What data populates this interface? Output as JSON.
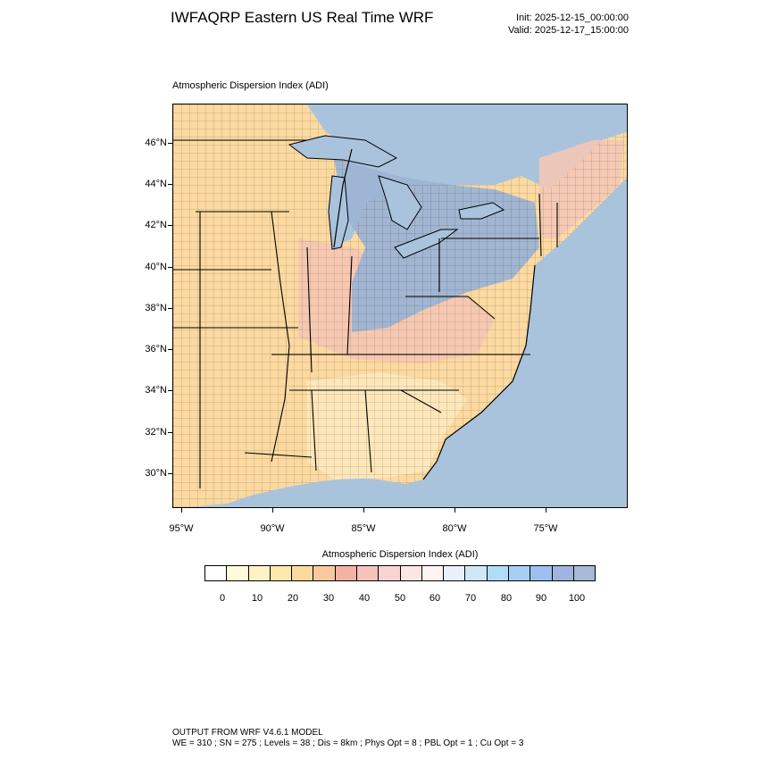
{
  "header": {
    "title": "IWFAQRP Eastern US Real Time WRF",
    "init_time": "Init: 2025-12-15_00:00:00",
    "valid_time": "Valid: 2025-12-17_15:00:00"
  },
  "map": {
    "subtitle": "Atmospheric Dispersion Index   (ADI)",
    "lat_labels": [
      "46°N",
      "44°N",
      "42°N",
      "40°N",
      "38°N",
      "36°N",
      "34°N",
      "32°N",
      "30°N"
    ],
    "lon_labels": [
      "95°W",
      "90°W",
      "85°W",
      "80°W",
      "75°W"
    ],
    "colors": {
      "water": "#a9c3dd",
      "high_adi": "#9db4d4",
      "mid_adi": "#f5d2c4",
      "low_adi": "#fbd9a0",
      "boundary": "#000000"
    }
  },
  "colorbar": {
    "title": "Atmospheric Dispersion Index  (ADI)",
    "colors": [
      "#ffffff",
      "#fffbd8",
      "#fff2c4",
      "#fee7aa",
      "#fbd9a0",
      "#f8c99c",
      "#f4b2a4",
      "#f6c2bc",
      "#f9d5d2",
      "#fbe6e4",
      "#fdf3f3",
      "#e9f0fb",
      "#cfe6f7",
      "#b0dcf7",
      "#a7cff4",
      "#9dbfef",
      "#9fb4e0",
      "#a6b9d6"
    ],
    "labels": [
      "0",
      "10",
      "20",
      "30",
      "40",
      "50",
      "60",
      "70",
      "80",
      "90",
      "100"
    ]
  },
  "footer": {
    "line1": "OUTPUT FROM WRF V4.6.1 MODEL",
    "line2": "WE = 310 ; SN = 275 ; Levels = 38 ; Dis = 8km ; Phys Opt = 8 ; PBL Opt = 1 ; Cu Opt = 3"
  }
}
